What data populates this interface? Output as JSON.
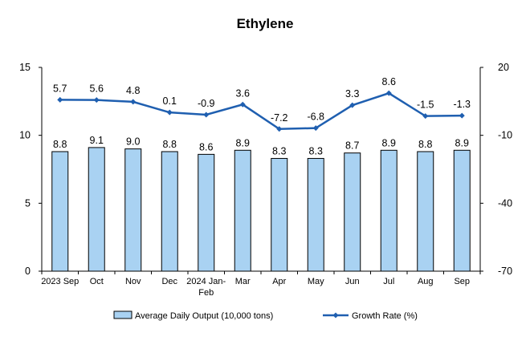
{
  "chart_data": {
    "type": "bar",
    "title": "Ethylene",
    "categories": [
      "2023 Sep",
      "Oct",
      "Nov",
      "Dec",
      "2024 Jan-Feb",
      "Mar",
      "Apr",
      "May",
      "Jun",
      "Jul",
      "Aug",
      "Sep"
    ],
    "series": [
      {
        "name": "Average Daily Output (10,000 tons)",
        "type": "bar",
        "axis": "left",
        "color": "#a9d2f2",
        "values": [
          8.8,
          9.1,
          9.0,
          8.8,
          8.6,
          8.9,
          8.3,
          8.3,
          8.7,
          8.9,
          8.8,
          8.9
        ],
        "labels": [
          "8.8",
          "9.1",
          "9.0",
          "8.8",
          "8.6",
          "8.9",
          "8.3",
          "8.3",
          "8.7",
          "8.9",
          "8.8",
          "8.9"
        ]
      },
      {
        "name": "Growth Rate (%)",
        "type": "line",
        "axis": "right",
        "color": "#1f5fb0",
        "values": [
          5.7,
          5.6,
          4.8,
          0.1,
          -0.9,
          3.6,
          -7.2,
          -6.8,
          3.3,
          8.6,
          -1.5,
          -1.3
        ],
        "labels": [
          "5.7",
          "5.6",
          "4.8",
          "0.1",
          "-0.9",
          "3.6",
          "-7.2",
          "-6.8",
          "3.3",
          "8.6",
          "-1.5",
          "-1.3"
        ]
      }
    ],
    "y_left": {
      "min": 0,
      "max": 15,
      "ticks": [
        0,
        5,
        10,
        15
      ],
      "tick_labels": [
        "0",
        "5",
        "10",
        "15"
      ]
    },
    "y_right": {
      "min": -70,
      "max": 20,
      "ticks": [
        -70,
        -40,
        -10,
        20
      ],
      "tick_labels": [
        "-70",
        "-40",
        "-10",
        "20"
      ]
    },
    "grid": false,
    "legend_position": "bottom"
  }
}
